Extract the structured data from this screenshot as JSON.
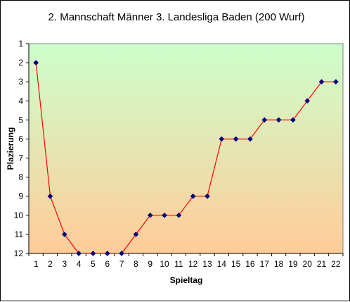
{
  "chart_data": {
    "type": "line",
    "title": "2. Mannschaft Männer  3. Landesliga Baden (200 Wurf)",
    "xlabel": "Spieltag",
    "ylabel": "Plazierung",
    "x": [
      1,
      2,
      3,
      4,
      5,
      6,
      7,
      8,
      9,
      10,
      11,
      12,
      13,
      14,
      15,
      16,
      17,
      18,
      19,
      20,
      21,
      22
    ],
    "xticks": [
      "1",
      "2",
      "3",
      "4",
      "5",
      "6",
      "7",
      "8",
      "9",
      "10",
      "11",
      "12",
      "13",
      "14",
      "15",
      "16",
      "17",
      "18",
      "19",
      "20",
      "21",
      "22"
    ],
    "yticks": [
      "1",
      "2",
      "3",
      "4",
      "5",
      "6",
      "7",
      "8",
      "9",
      "10",
      "11",
      "12"
    ],
    "ylim": [
      1,
      12
    ],
    "y_reversed": true,
    "series": [
      {
        "values": [
          2,
          9,
          11,
          12,
          12,
          12,
          12,
          11,
          10,
          10,
          10,
          9,
          9,
          6,
          6,
          6,
          5,
          5,
          5,
          4,
          3,
          3
        ]
      }
    ],
    "line_color": "#ff0000",
    "marker_color": "#000080",
    "background_gradient": [
      "#ccffcc",
      "#ffcc99"
    ],
    "grid": false,
    "legend": "none"
  }
}
